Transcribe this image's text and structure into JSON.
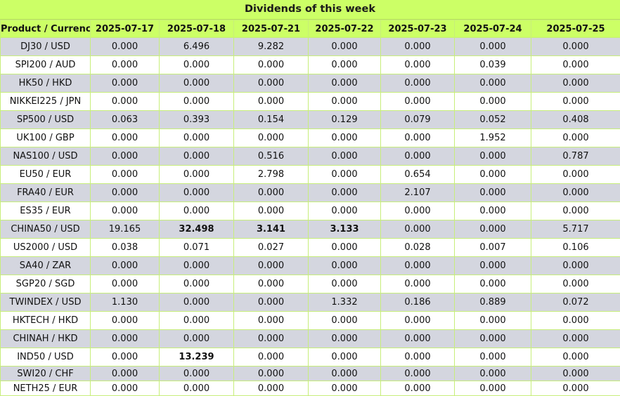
{
  "title": "Dividends of this week",
  "headers": [
    "Product / Currency",
    "2025-07-17",
    "2025-07-18",
    "2025-07-21",
    "2025-07-22",
    "2025-07-23",
    "2025-07-24",
    "2025-07-25"
  ],
  "rows": [
    {
      "product": "DJ30 / USD",
      "values": [
        "0.000",
        "6.496",
        "9.282",
        "0.000",
        "0.000",
        "0.000",
        "0.000"
      ]
    },
    {
      "product": "SPI200 / AUD",
      "values": [
        "0.000",
        "0.000",
        "0.000",
        "0.000",
        "0.000",
        "0.039",
        "0.000"
      ]
    },
    {
      "product": "HK50 / HKD",
      "values": [
        "0.000",
        "0.000",
        "0.000",
        "0.000",
        "0.000",
        "0.000",
        "0.000"
      ]
    },
    {
      "product": "NIKKEI225 / JPN",
      "values": [
        "0.000",
        "0.000",
        "0.000",
        "0.000",
        "0.000",
        "0.000",
        "0.000"
      ]
    },
    {
      "product": "SP500 / USD",
      "values": [
        "0.063",
        "0.393",
        "0.154",
        "0.129",
        "0.079",
        "0.052",
        "0.408"
      ]
    },
    {
      "product": "UK100 / GBP",
      "values": [
        "0.000",
        "0.000",
        "0.000",
        "0.000",
        "0.000",
        "1.952",
        "0.000"
      ]
    },
    {
      "product": "NAS100 / USD",
      "values": [
        "0.000",
        "0.000",
        "0.516",
        "0.000",
        "0.000",
        "0.000",
        "0.787"
      ]
    },
    {
      "product": "EU50 / EUR",
      "values": [
        "0.000",
        "0.000",
        "2.798",
        "0.000",
        "0.654",
        "0.000",
        "0.000"
      ]
    },
    {
      "product": "FRA40 / EUR",
      "values": [
        "0.000",
        "0.000",
        "0.000",
        "0.000",
        "2.107",
        "0.000",
        "0.000"
      ]
    },
    {
      "product": "ES35 / EUR",
      "values": [
        "0.000",
        "0.000",
        "0.000",
        "0.000",
        "0.000",
        "0.000",
        "0.000"
      ]
    },
    {
      "product": "CHINA50 / USD",
      "values": [
        "19.165",
        "32.498",
        "3.141",
        "3.133",
        "0.000",
        "0.000",
        "5.717"
      ],
      "bold": [
        1,
        2,
        3
      ]
    },
    {
      "product": "US2000 / USD",
      "values": [
        "0.038",
        "0.071",
        "0.027",
        "0.000",
        "0.028",
        "0.007",
        "0.106"
      ]
    },
    {
      "product": "SA40 / ZAR",
      "values": [
        "0.000",
        "0.000",
        "0.000",
        "0.000",
        "0.000",
        "0.000",
        "0.000"
      ]
    },
    {
      "product": "SGP20 / SGD",
      "values": [
        "0.000",
        "0.000",
        "0.000",
        "0.000",
        "0.000",
        "0.000",
        "0.000"
      ]
    },
    {
      "product": "TWINDEX / USD",
      "values": [
        "1.130",
        "0.000",
        "0.000",
        "1.332",
        "0.186",
        "0.889",
        "0.072"
      ]
    },
    {
      "product": "HKTECH / HKD",
      "values": [
        "0.000",
        "0.000",
        "0.000",
        "0.000",
        "0.000",
        "0.000",
        "0.000"
      ]
    },
    {
      "product": "CHINAH / HKD",
      "values": [
        "0.000",
        "0.000",
        "0.000",
        "0.000",
        "0.000",
        "0.000",
        "0.000"
      ]
    },
    {
      "product": "IND50 / USD",
      "values": [
        "0.000",
        "13.239",
        "0.000",
        "0.000",
        "0.000",
        "0.000",
        "0.000"
      ],
      "bold": [
        1
      ]
    },
    {
      "product": "SWI20 / CHF",
      "values": [
        "0.000",
        "0.000",
        "0.000",
        "0.000",
        "0.000",
        "0.000",
        "0.000"
      ]
    },
    {
      "product": "NETH25 / EUR",
      "values": [
        "0.000",
        "0.000",
        "0.000",
        "0.000",
        "0.000",
        "0.000",
        "0.000"
      ]
    }
  ]
}
